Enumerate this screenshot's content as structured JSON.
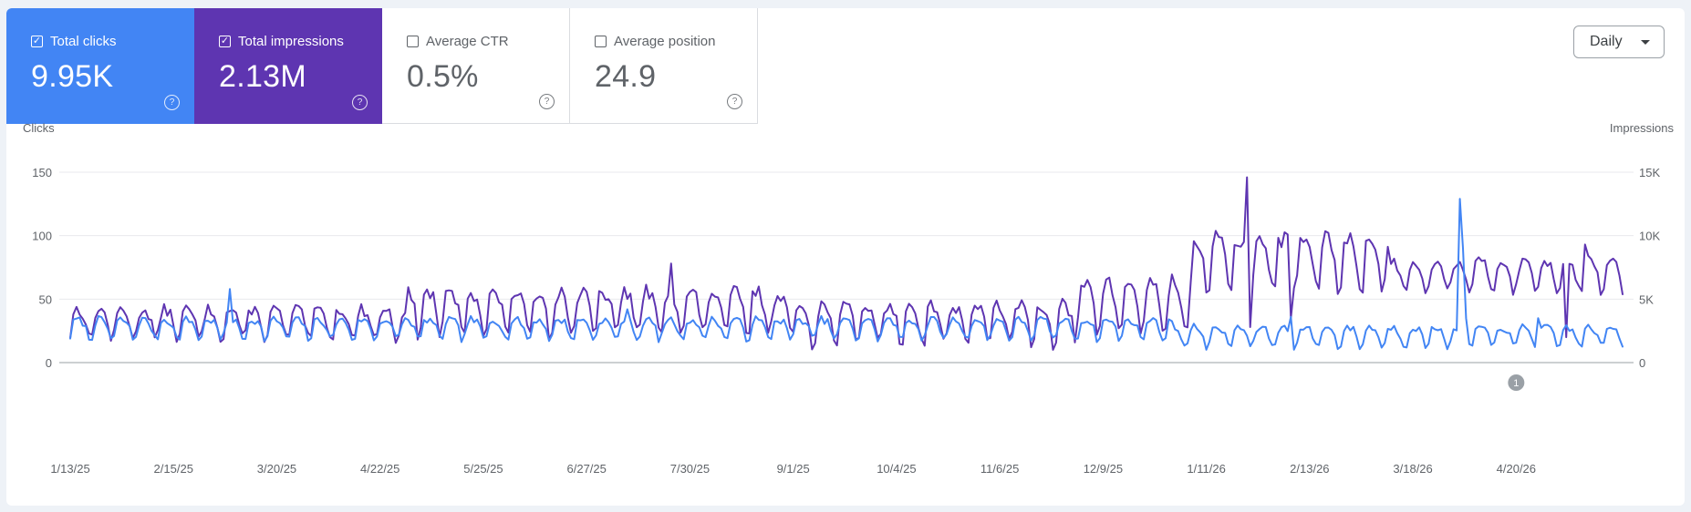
{
  "metrics": [
    {
      "label": "Total clicks",
      "value": "9.95K",
      "checked": true,
      "color": "#4285f4",
      "help_icon": "question-mark-icon"
    },
    {
      "label": "Total impressions",
      "value": "2.13M",
      "checked": true,
      "color": "#5e35b1",
      "help_icon": "question-mark-icon"
    },
    {
      "label": "Average CTR",
      "value": "0.5%",
      "checked": false,
      "help_icon": "question-mark-icon"
    },
    {
      "label": "Average position",
      "value": "24.9",
      "checked": false,
      "help_icon": "question-mark-icon"
    }
  ],
  "granularity": {
    "selected": "Daily",
    "icon": "caret-down-icon"
  },
  "chart_data": {
    "type": "line",
    "title": "",
    "start_date": "2025-01-13",
    "end_date": "2026-05-24",
    "x_tick_labels": [
      "1/13/25",
      "2/15/25",
      "3/20/25",
      "4/22/25",
      "5/25/25",
      "6/27/25",
      "7/30/25",
      "9/1/25",
      "10/4/25",
      "11/6/25",
      "12/9/25",
      "1/11/26",
      "2/13/26",
      "3/18/26",
      "4/20/26"
    ],
    "y_left": {
      "label": "Clicks",
      "ticks": [
        0,
        50,
        100,
        150
      ],
      "tick_labels": [
        "0",
        "50",
        "100",
        "150"
      ],
      "range": [
        0,
        150
      ]
    },
    "y_right": {
      "label": "Impressions",
      "ticks": [
        0,
        5000,
        10000,
        15000
      ],
      "tick_labels": [
        "0",
        "5K",
        "10K",
        "15K"
      ],
      "range": [
        0,
        15000
      ]
    },
    "grid": true,
    "legend": "none",
    "annotation": {
      "label": "1",
      "date": "2026-04-20"
    },
    "series": [
      {
        "name": "Total clicks",
        "color": "#4285f4",
        "axis": "left",
        "segments": [
          {
            "from": "2025-01-13",
            "to": "2025-12-31",
            "weekly_low": 18,
            "weekly_high": 34,
            "trend": 0.0
          },
          {
            "from": "2026-01-01",
            "to": "2026-05-24",
            "weekly_low": 12,
            "weekly_high": 28,
            "trend": 0.0
          }
        ],
        "spikes": [
          {
            "date": "2025-03-05",
            "value": 58
          },
          {
            "date": "2025-07-10",
            "value": 42
          },
          {
            "date": "2026-02-07",
            "value": 36
          },
          {
            "date": "2026-04-02",
            "value": 129
          },
          {
            "date": "2026-04-03",
            "value": 90
          },
          {
            "date": "2026-04-04",
            "value": 35
          },
          {
            "date": "2026-04-27",
            "value": 35
          }
        ]
      },
      {
        "name": "Total impressions",
        "color": "#5e35b1",
        "axis": "right",
        "segments": [
          {
            "from": "2025-01-13",
            "to": "2025-04-30",
            "weekly_low": 1800,
            "weekly_high": 4200,
            "trend": 0.0
          },
          {
            "from": "2025-05-01",
            "to": "2025-08-31",
            "weekly_low": 2200,
            "weekly_high": 5600,
            "trend": 0.0
          },
          {
            "from": "2025-09-01",
            "to": "2025-11-30",
            "weekly_low": 1400,
            "weekly_high": 4600,
            "trend": 0.0
          },
          {
            "from": "2025-12-01",
            "to": "2026-01-06",
            "weekly_low": 2500,
            "weekly_high": 6300,
            "trend": 0.0
          },
          {
            "from": "2026-01-07",
            "to": "2026-03-10",
            "weekly_low": 5600,
            "weekly_high": 9800,
            "trend": 0.0
          },
          {
            "from": "2026-03-11",
            "to": "2026-05-24",
            "weekly_low": 5600,
            "weekly_high": 8000,
            "trend": 0.0
          }
        ],
        "spikes": [
          {
            "date": "2025-07-24",
            "value": 7800
          },
          {
            "date": "2026-01-24",
            "value": 14600
          },
          {
            "date": "2026-01-25",
            "value": 2800
          },
          {
            "date": "2026-02-06",
            "value": 10100
          },
          {
            "date": "2026-02-07",
            "value": 3500
          },
          {
            "date": "2026-04-03",
            "value": 7300
          },
          {
            "date": "2026-05-06",
            "value": 2000
          },
          {
            "date": "2026-05-12",
            "value": 9300
          }
        ]
      }
    ]
  }
}
